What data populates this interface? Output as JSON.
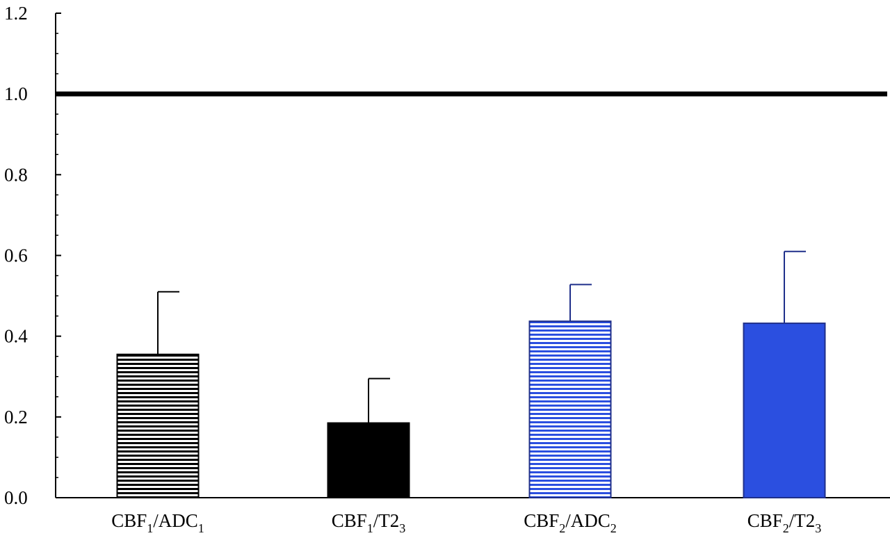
{
  "chart_data": {
    "type": "bar",
    "title": "",
    "xlabel": "",
    "ylabel": "",
    "ylim": [
      0,
      1.2
    ],
    "grid": false,
    "yticks": [
      {
        "value": 0.0,
        "label": "0.0"
      },
      {
        "value": 0.2,
        "label": "0.2"
      },
      {
        "value": 0.4,
        "label": "0.4"
      },
      {
        "value": 0.6,
        "label": "0.6"
      },
      {
        "value": 0.8,
        "label": "0.8"
      },
      {
        "value": 1.0,
        "label": "1.0"
      },
      {
        "value": 1.2,
        "label": "1.2"
      }
    ],
    "categories": [
      {
        "base": "CBF",
        "sub1": "1",
        "mid": "/ADC",
        "sub2": "1"
      },
      {
        "base": "CBF",
        "sub1": "1",
        "mid": "/T2",
        "sub2": "3"
      },
      {
        "base": "CBF",
        "sub1": "2",
        "mid": "/ADC",
        "sub2": "2"
      },
      {
        "base": "CBF",
        "sub1": "2",
        "mid": "/T2",
        "sub2": "3"
      }
    ],
    "values": [
      0.355,
      0.185,
      0.437,
      0.432
    ],
    "error_upper": [
      0.51,
      0.295,
      0.528,
      0.61
    ],
    "bar_fills": [
      "black-hatched",
      "black-solid",
      "blue-hatched",
      "blue-solid"
    ],
    "reference_line": {
      "value": 1.0
    },
    "colors": {
      "black": "#000000",
      "blue": "#2b4fe0",
      "blue_dark": "#1f2f8a"
    }
  }
}
